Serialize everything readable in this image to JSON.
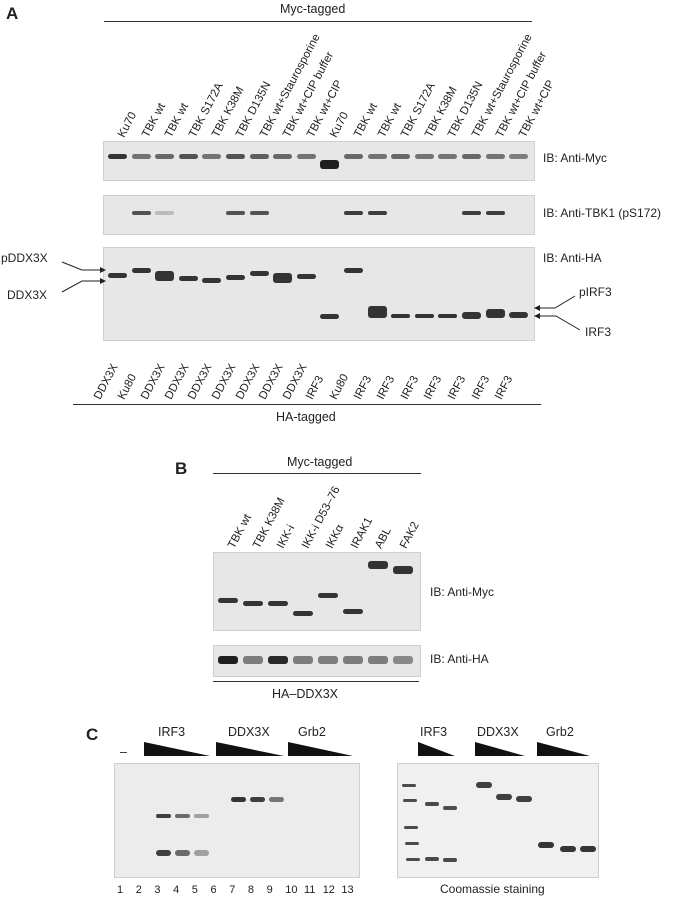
{
  "panelA": {
    "label": "A",
    "top_header": "Myc-tagged",
    "lanes_top": [
      "Ku70",
      "TBK wt",
      "TBK wt",
      "TBK S172A",
      "TBK K38M",
      "TBK D135N",
      "TBK wt+Staurosporine",
      "TBK wt+CIP buffer",
      "TBK wt+CIP",
      "Ku70",
      "TBK wt",
      "TBK wt",
      "TBK S172A",
      "TBK K38M",
      "TBK D135N",
      "TBK wt+Staurosporine",
      "TBK wt+CIP buffer",
      "TBK wt+CIP"
    ],
    "ib1": "IB: Anti-Myc",
    "ib2": "IB: Anti-TBK1 (pS172)",
    "ib3": "IB: Anti-HA",
    "left_marker_top": "pDDX3X",
    "left_marker_bottom": "DDX3X",
    "right_marker_top": "pIRF3",
    "right_marker_bottom": "IRF3",
    "lanes_bottom": [
      "DDX3X",
      "Ku80",
      "DDX3X",
      "DDX3X",
      "DDX3X",
      "DDX3X",
      "DDX3X",
      "DDX3X",
      "DDX3X",
      "IRF3",
      "Ku80",
      "IRF3",
      "IRF3",
      "IRF3",
      "IRF3",
      "IRF3",
      "IRF3",
      "IRF3"
    ],
    "bottom_header": "HA-tagged"
  },
  "panelB": {
    "label": "B",
    "header": "Myc-tagged",
    "lanes": [
      "TBK wt",
      "TBK K38M",
      "IKK-i",
      "IKK-i D53–76",
      "IKKα",
      "IRAK1",
      "ABL",
      "FAK2"
    ],
    "ib1": "IB: Anti-Myc",
    "ib2": "IB: Anti-HA",
    "footer": "HA–DDX3X"
  },
  "panelC": {
    "label": "C",
    "dash": "–",
    "groups_left": [
      "IRF3",
      "DDX3X",
      "Grb2"
    ],
    "groups_right": [
      "IRF3",
      "DDX3X",
      "Grb2"
    ],
    "lane_numbers": [
      "1",
      "2",
      "3",
      "4",
      "5",
      "6",
      "7",
      "8",
      "9",
      "10",
      "11",
      "12",
      "13"
    ],
    "coomassie": "Coomassie staining"
  },
  "colors": {
    "band": "#1a1a1a",
    "blot_bg": "#e7e7e7"
  }
}
